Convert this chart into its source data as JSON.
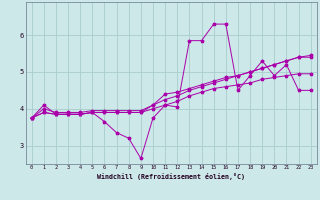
{
  "xlabel": "Windchill (Refroidissement éolien,°C)",
  "background_color": "#cce8e8",
  "grid_color": "#aacccc",
  "line_color": "#aa00aa",
  "xlim": [
    -0.5,
    23.5
  ],
  "ylim": [
    2.5,
    6.9
  ],
  "x_ticks": [
    0,
    1,
    2,
    3,
    4,
    5,
    6,
    7,
    8,
    9,
    10,
    11,
    12,
    13,
    14,
    15,
    16,
    17,
    18,
    19,
    20,
    21,
    22,
    23
  ],
  "y_ticks": [
    3,
    4,
    5,
    6
  ],
  "series": [
    [
      3.75,
      4.1,
      3.85,
      3.85,
      3.85,
      3.9,
      3.65,
      3.35,
      3.2,
      2.65,
      3.75,
      4.1,
      4.05,
      5.85,
      5.85,
      6.3,
      6.3,
      4.5,
      4.9,
      5.3,
      4.9,
      5.2,
      4.5,
      4.5
    ],
    [
      3.75,
      3.9,
      3.85,
      3.85,
      3.85,
      3.9,
      3.9,
      3.9,
      3.9,
      3.9,
      4.0,
      4.1,
      4.2,
      4.35,
      4.45,
      4.55,
      4.6,
      4.65,
      4.7,
      4.8,
      4.85,
      4.9,
      4.95,
      4.95
    ],
    [
      3.75,
      3.9,
      3.85,
      3.85,
      3.85,
      3.9,
      3.9,
      3.9,
      3.9,
      3.9,
      4.1,
      4.25,
      4.35,
      4.5,
      4.6,
      4.7,
      4.8,
      4.9,
      5.0,
      5.1,
      5.2,
      5.3,
      5.4,
      5.4
    ],
    [
      3.75,
      4.0,
      3.9,
      3.9,
      3.9,
      3.95,
      3.95,
      3.95,
      3.95,
      3.95,
      4.1,
      4.4,
      4.45,
      4.55,
      4.65,
      4.75,
      4.85,
      4.9,
      5.0,
      5.1,
      5.2,
      5.3,
      5.4,
      5.45
    ]
  ]
}
